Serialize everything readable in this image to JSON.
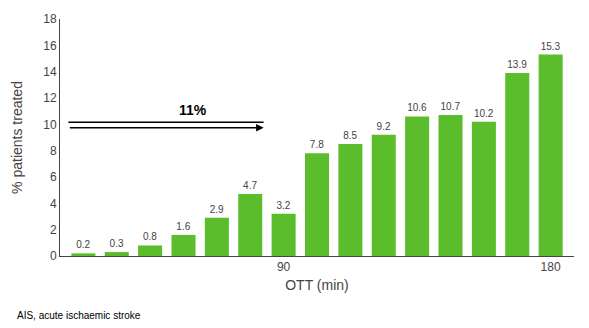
{
  "chart_data": {
    "type": "bar",
    "categories": [
      null,
      null,
      null,
      null,
      null,
      null,
      "90",
      null,
      null,
      null,
      null,
      null,
      null,
      null,
      "180"
    ],
    "values": [
      0.2,
      0.3,
      0.8,
      1.6,
      2.9,
      4.7,
      3.2,
      7.8,
      8.5,
      9.2,
      10.6,
      10.7,
      10.2,
      13.9,
      15.3
    ],
    "color": "#5BBD2C",
    "ylim": [
      0,
      18
    ],
    "yticks": [
      0,
      2,
      4,
      6,
      8,
      10,
      12,
      14,
      16,
      18
    ],
    "xlabel": "OTT (min)",
    "ylabel": "% patients treated",
    "annotations": [
      "11%"
    ],
    "footnote": "AIS, acute ischaemic stroke",
    "grid": false,
    "data_labels": true
  }
}
